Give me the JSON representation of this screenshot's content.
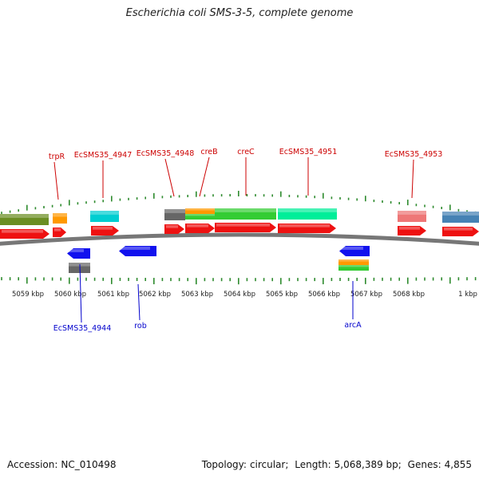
{
  "title": "Escherichia coli SMS-3-5, complete genome",
  "footer": {
    "accession_label": "Accession:",
    "accession": "NC_010498",
    "topology_label": "Topology:",
    "topology": "circular;",
    "length_label": "Length:",
    "length": "5,068,389 bp;",
    "genes_label": "Genes:",
    "genes": "4,855"
  },
  "colors": {
    "backbone": "#777777",
    "tick": "#2e8b2e",
    "axis_label": "#222222",
    "top_label": "#cc0000",
    "bottom_label": "#0000cc",
    "cds_forward": "#ee1111",
    "cds_reverse": "#1111ee"
  },
  "axis_labels": [
    "5059 kbp",
    "5060 kbp",
    "5061 kbp",
    "5062 kbp",
    "5063 kbp",
    "5064 kbp",
    "5065 kbp",
    "5066 kbp",
    "5067 kbp",
    "5068 kbp",
    "1 kbp"
  ],
  "top_labels": [
    "trpR",
    "EcSMS35_4947",
    "EcSMS35_4948",
    "creB",
    "creC",
    "EcSMS35_4951",
    "EcSMS35_4953"
  ],
  "bottom_labels": [
    "EcSMS35_4944",
    "rob",
    "arcA"
  ],
  "features": {
    "top_colored": [
      {
        "name": "olive-block",
        "color": "#6b8e23"
      },
      {
        "name": "orange-block",
        "color": "#ff9900"
      },
      {
        "name": "cyan-block",
        "color": "#00ced1"
      },
      {
        "name": "gray-block",
        "color": "#666666"
      },
      {
        "name": "orange-block-2",
        "color": "#ff9900"
      },
      {
        "name": "green-block",
        "color": "#33cc33"
      },
      {
        "name": "green-block-2",
        "color": "#33cc33"
      },
      {
        "name": "springgreen-block",
        "color": "#00ee99"
      },
      {
        "name": "pink-block",
        "color": "#ee7777"
      },
      {
        "name": "steelblue-block",
        "color": "#4682b4"
      }
    ],
    "top_cds": [
      {
        "strand": "+"
      },
      {
        "strand": "+"
      },
      {
        "strand": "+"
      },
      {
        "strand": "+"
      },
      {
        "strand": "+"
      },
      {
        "strand": "+"
      },
      {
        "strand": "+"
      },
      {
        "strand": "+"
      },
      {
        "strand": "+"
      }
    ],
    "bottom_cds": [
      {
        "strand": "-"
      },
      {
        "strand": "-"
      },
      {
        "strand": "-"
      }
    ],
    "bottom_colored": [
      {
        "name": "gray-block",
        "color": "#666666"
      },
      {
        "name": "orange-block",
        "color": "#ff9900"
      },
      {
        "name": "green-block",
        "color": "#33cc33"
      }
    ]
  }
}
